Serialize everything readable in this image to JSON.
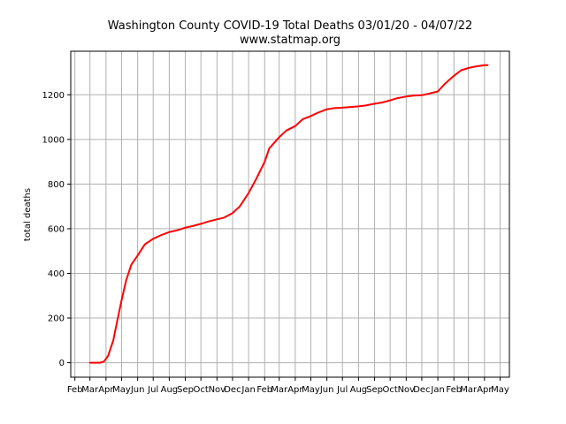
{
  "chart_data": {
    "type": "line",
    "title": "Washington County COVID-19 Total Deaths 03/01/20 - 04/07/22",
    "subtitle": "www.statmap.org",
    "xlabel": "",
    "ylabel": "total deaths",
    "ylim": [
      -65,
      1395
    ],
    "yticks": [
      0,
      200,
      400,
      600,
      800,
      1000,
      1200
    ],
    "xlim": [
      "2020-01-24",
      "2022-05-19"
    ],
    "grid": true,
    "line_color": "#ff0000",
    "xtick_labels": [
      "Feb",
      "Mar",
      "Apr",
      "May",
      "Jun",
      "Jul",
      "Aug",
      "Sep",
      "Oct",
      "Nov",
      "Dec",
      "Jan",
      "Feb",
      "Mar",
      "Apr",
      "May",
      "Jun",
      "Jul",
      "Aug",
      "Sep",
      "Oct",
      "Nov",
      "Dec",
      "Jan",
      "Feb",
      "Mar",
      "Apr",
      "May"
    ],
    "xtick_dates": [
      "2020-02-01",
      "2020-03-01",
      "2020-04-01",
      "2020-05-01",
      "2020-06-01",
      "2020-07-01",
      "2020-08-01",
      "2020-09-01",
      "2020-10-01",
      "2020-11-01",
      "2020-12-01",
      "2021-01-01",
      "2021-02-01",
      "2021-03-01",
      "2021-04-01",
      "2021-05-01",
      "2021-06-01",
      "2021-07-01",
      "2021-08-01",
      "2021-09-01",
      "2021-10-01",
      "2021-11-01",
      "2021-12-01",
      "2022-01-01",
      "2022-02-01",
      "2022-03-01",
      "2022-04-01",
      "2022-05-01"
    ],
    "series": [
      {
        "name": "",
        "points": [
          [
            "2020-03-01",
            0
          ],
          [
            "2020-03-20",
            0
          ],
          [
            "2020-03-28",
            5
          ],
          [
            "2020-04-05",
            30
          ],
          [
            "2020-04-15",
            100
          ],
          [
            "2020-04-22",
            180
          ],
          [
            "2020-05-01",
            280
          ],
          [
            "2020-05-10",
            370
          ],
          [
            "2020-05-20",
            440
          ],
          [
            "2020-06-01",
            480
          ],
          [
            "2020-06-15",
            530
          ],
          [
            "2020-07-01",
            555
          ],
          [
            "2020-07-15",
            570
          ],
          [
            "2020-08-01",
            585
          ],
          [
            "2020-08-15",
            592
          ],
          [
            "2020-09-01",
            605
          ],
          [
            "2020-09-15",
            612
          ],
          [
            "2020-10-01",
            622
          ],
          [
            "2020-10-15",
            632
          ],
          [
            "2020-11-01",
            642
          ],
          [
            "2020-11-15",
            650
          ],
          [
            "2020-12-01",
            670
          ],
          [
            "2020-12-15",
            700
          ],
          [
            "2021-01-01",
            760
          ],
          [
            "2021-01-15",
            820
          ],
          [
            "2021-02-01",
            900
          ],
          [
            "2021-02-10",
            960
          ],
          [
            "2021-03-01",
            1010
          ],
          [
            "2021-03-15",
            1040
          ],
          [
            "2021-04-01",
            1060
          ],
          [
            "2021-04-15",
            1090
          ],
          [
            "2021-05-01",
            1105
          ],
          [
            "2021-05-15",
            1120
          ],
          [
            "2021-06-01",
            1135
          ],
          [
            "2021-06-15",
            1140
          ],
          [
            "2021-07-01",
            1142
          ],
          [
            "2021-07-15",
            1145
          ],
          [
            "2021-08-01",
            1148
          ],
          [
            "2021-08-15",
            1152
          ],
          [
            "2021-09-01",
            1160
          ],
          [
            "2021-09-15",
            1165
          ],
          [
            "2021-10-01",
            1175
          ],
          [
            "2021-10-15",
            1185
          ],
          [
            "2021-11-01",
            1192
          ],
          [
            "2021-11-15",
            1196
          ],
          [
            "2021-12-01",
            1198
          ],
          [
            "2021-12-15",
            1205
          ],
          [
            "2022-01-01",
            1215
          ],
          [
            "2022-01-15",
            1250
          ],
          [
            "2022-02-01",
            1285
          ],
          [
            "2022-02-15",
            1310
          ],
          [
            "2022-03-01",
            1320
          ],
          [
            "2022-03-15",
            1327
          ],
          [
            "2022-04-01",
            1333
          ],
          [
            "2022-04-07",
            1333
          ]
        ]
      }
    ]
  }
}
